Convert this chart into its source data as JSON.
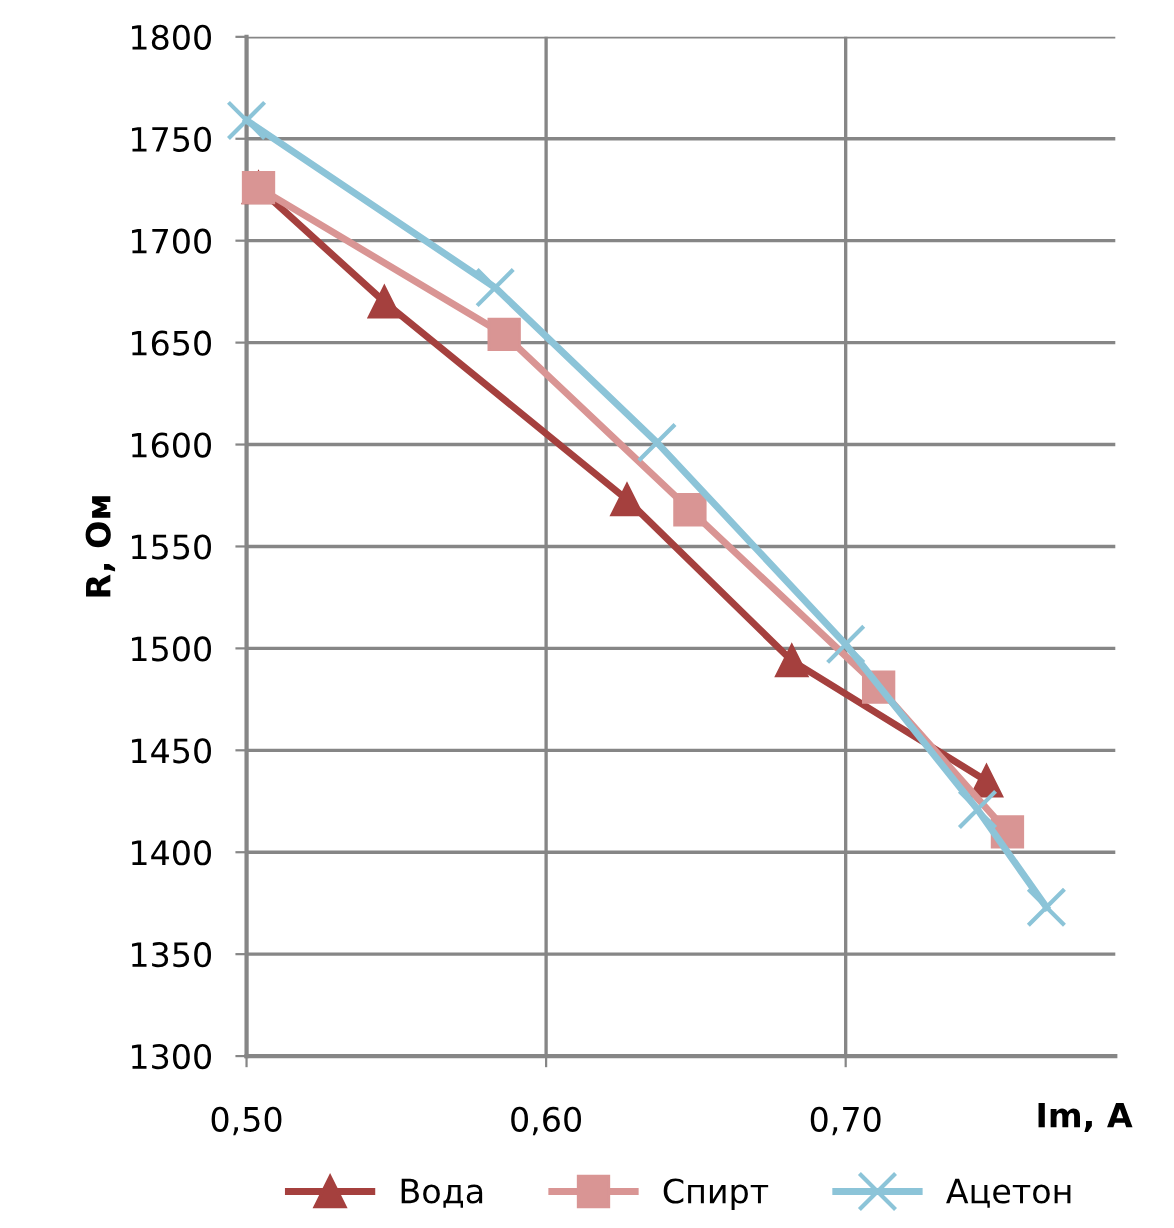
{
  "chart_data": {
    "type": "line",
    "xlabel": "Im, A",
    "ylabel": "R, Ом",
    "xlim": [
      0.5,
      0.79
    ],
    "ylim": [
      1300,
      1800
    ],
    "xticks": [
      {
        "value": 0.5,
        "label": "0,50"
      },
      {
        "value": 0.6,
        "label": "0,60"
      },
      {
        "value": 0.7,
        "label": "0,70"
      }
    ],
    "yticks": [
      1300,
      1350,
      1400,
      1450,
      1500,
      1550,
      1600,
      1650,
      1700,
      1750,
      1800
    ],
    "grid": true,
    "legend": "bottom",
    "series": [
      {
        "name": "Вода",
        "color": "#a5403e",
        "marker": "triangle",
        "x": [
          0.504,
          0.546,
          0.627,
          0.682,
          0.747
        ],
        "values": [
          1726,
          1670,
          1573,
          1494,
          1435
        ]
      },
      {
        "name": "Спирт",
        "color": "#d99594",
        "marker": "square",
        "x": [
          0.504,
          0.586,
          0.648,
          0.711,
          0.754
        ],
        "values": [
          1726,
          1654,
          1568,
          1481,
          1410
        ]
      },
      {
        "name": "Ацетон",
        "color": "#8cc4d8",
        "marker": "cross",
        "x": [
          0.5,
          0.583,
          0.637,
          0.7,
          0.744,
          0.767
        ],
        "values": [
          1759,
          1677,
          1601,
          1502,
          1421,
          1373
        ]
      }
    ]
  }
}
